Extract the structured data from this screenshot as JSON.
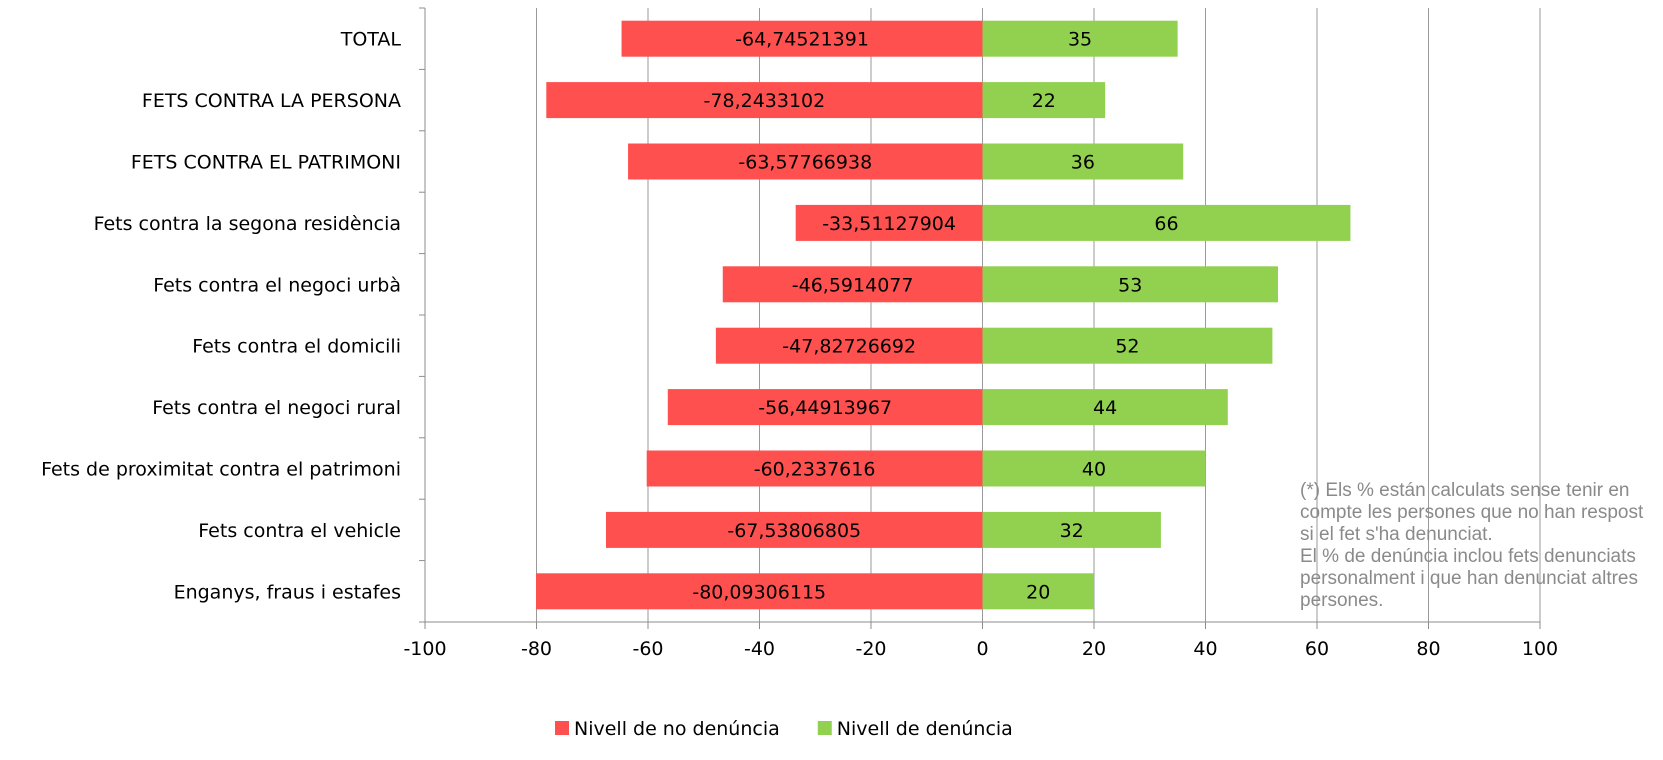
{
  "chart_data": {
    "type": "bar",
    "orientation": "horizontal",
    "stacked": true,
    "categories": [
      "TOTAL",
      "FETS CONTRA LA PERSONA",
      "FETS CONTRA EL PATRIMONI",
      "Fets contra la segona residència",
      "Fets contra el negoci urbà",
      "Fets contra el domicili",
      "Fets contra el negoci rural",
      "Fets de proximitat contra el patrimoni",
      "Fets contra el vehicle",
      "Enganys, fraus i estafes"
    ],
    "series": [
      {
        "name": "Nivell de no denúncia",
        "color": "#ff5050",
        "values": [
          -64.74521391,
          -78.2433102,
          -63.57766938,
          -33.51127904,
          -46.5914077,
          -47.82726692,
          -56.44913967,
          -60.2337616,
          -67.53806805,
          -80.09306115
        ],
        "labels": [
          "-64,74521391",
          "-78,2433102",
          "-63,57766938",
          "-33,51127904",
          "-46,5914077",
          "-47,82726692",
          "-56,44913967",
          "-60,2337616",
          "-67,53806805",
          "-80,09306115"
        ]
      },
      {
        "name": "Nivell de denúncia",
        "color": "#92d050",
        "values": [
          35,
          22,
          36,
          66,
          53,
          52,
          44,
          40,
          32,
          20
        ],
        "labels": [
          "35",
          "22",
          "36",
          "66",
          "53",
          "52",
          "44",
          "40",
          "32",
          "20"
        ]
      }
    ],
    "xlim": [
      -100,
      100
    ],
    "xticks": [
      "-100",
      "-80",
      "-60",
      "-40",
      "-20",
      "0",
      "20",
      "40",
      "60",
      "80",
      "100"
    ],
    "grid": true,
    "legend": "bottom",
    "annotation": "(*) Els % están calculats sense tenir en compte les persones que no han respost si el fet s'ha denunciat.\nEl % de denúncia inclou fets denunciats personalment i que han denunciat altres persones."
  }
}
